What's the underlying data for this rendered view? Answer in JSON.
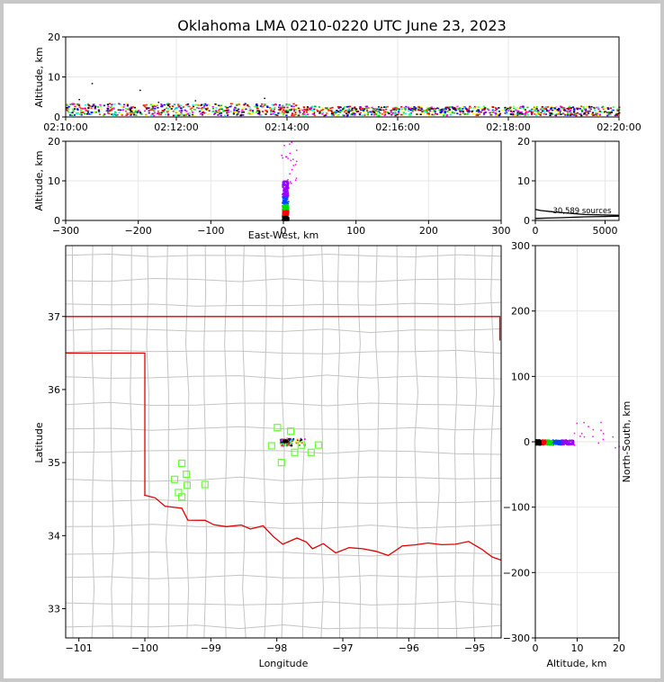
{
  "title": "Oklahoma LMA 0210-0220 UTC June 23, 2023",
  "colors": {
    "station": "#66ff33",
    "state_border": "#e00000",
    "county_lines": "#c4c4c4",
    "count_curve": "#000000"
  },
  "chart_data": [
    {
      "id": "time-altitude",
      "type": "scatter",
      "ylabel": "Altitude, km",
      "xlabel": "",
      "xlim_seconds_after_0210": [
        0,
        600
      ],
      "x_ticks": [
        "02:10:00",
        "02:12:00",
        "02:14:00",
        "02:16:00",
        "02:18:00",
        "02:20:00"
      ],
      "ylim": [
        0,
        20
      ],
      "y_ticks": [
        "0",
        "10",
        "20"
      ],
      "grid": true,
      "altitude_band_km": [
        0.3,
        3.0
      ],
      "sparse_high_points": [
        [
          28,
          8.5
        ],
        [
          80,
          6.8
        ],
        [
          14,
          4.5
        ],
        [
          140,
          4.2
        ],
        [
          215,
          4.8
        ],
        [
          100,
          3.8
        ]
      ]
    },
    {
      "id": "east-west-altitude",
      "type": "scatter",
      "ylabel": "Altitude, km",
      "xlabel": "East-West, km",
      "xlim": [
        -300,
        300
      ],
      "x_ticks": [
        "−300",
        "−200",
        "−100",
        "0",
        "100",
        "200",
        "300"
      ],
      "ylim": [
        0,
        20
      ],
      "y_ticks": [
        "0",
        "10",
        "20"
      ],
      "grid": true,
      "column_center_km": 3,
      "column_top_km": 20
    },
    {
      "id": "altitude-histogram",
      "type": "line",
      "xlim": [
        0,
        6000
      ],
      "x_ticks": [
        "0",
        "5000"
      ],
      "ylim": [
        0,
        20
      ],
      "y_ticks": [
        "0",
        "10",
        "20"
      ],
      "annotation": "30,589 sources",
      "total_sources": 30589,
      "curve_upper": [
        [
          0,
          2.8
        ],
        [
          400,
          2.5
        ],
        [
          1200,
          2.2
        ],
        [
          2500,
          1.8
        ],
        [
          3500,
          1.5
        ],
        [
          6000,
          1.3
        ]
      ],
      "curve_lower": [
        [
          0,
          0.5
        ],
        [
          800,
          0.6
        ],
        [
          2000,
          0.7
        ],
        [
          3500,
          0.9
        ],
        [
          5000,
          1.0
        ],
        [
          6000,
          1.1
        ]
      ]
    },
    {
      "id": "plan-view",
      "type": "map",
      "xlabel": "Longitude",
      "ylabel": "Latitude",
      "xlim": [
        -101.2,
        -94.6
      ],
      "ylim": [
        32.6,
        37.97
      ],
      "x_ticks": [
        "−101",
        "−100",
        "−99",
        "−98",
        "−97",
        "−96",
        "−95"
      ],
      "y_ticks": [
        "33",
        "34",
        "35",
        "36",
        "37"
      ],
      "stations": [
        [
          -97.99,
          35.48
        ],
        [
          -97.79,
          35.43
        ],
        [
          -98.08,
          35.23
        ],
        [
          -97.63,
          35.24
        ],
        [
          -97.37,
          35.24
        ],
        [
          -97.48,
          35.14
        ],
        [
          -97.73,
          35.14
        ],
        [
          -97.93,
          35.0
        ],
        [
          -99.44,
          34.99
        ],
        [
          -99.37,
          34.84
        ],
        [
          -99.55,
          34.77
        ],
        [
          -99.36,
          34.69
        ],
        [
          -99.09,
          34.7
        ],
        [
          -99.49,
          34.59
        ],
        [
          -99.44,
          34.53
        ]
      ],
      "source_cluster_center": [
        -97.87,
        35.29
      ]
    },
    {
      "id": "altitude-north-south",
      "type": "scatter",
      "xlabel": "Altitude, km",
      "ylabel": "North-South, km",
      "xlim": [
        0,
        20
      ],
      "x_ticks": [
        "0",
        "10",
        "20"
      ],
      "ylim": [
        -300,
        300
      ],
      "y_ticks": [
        "−300",
        "−200",
        "−100",
        "0",
        "100",
        "200",
        "300"
      ],
      "grid": true,
      "band_center_km": -1
    }
  ]
}
